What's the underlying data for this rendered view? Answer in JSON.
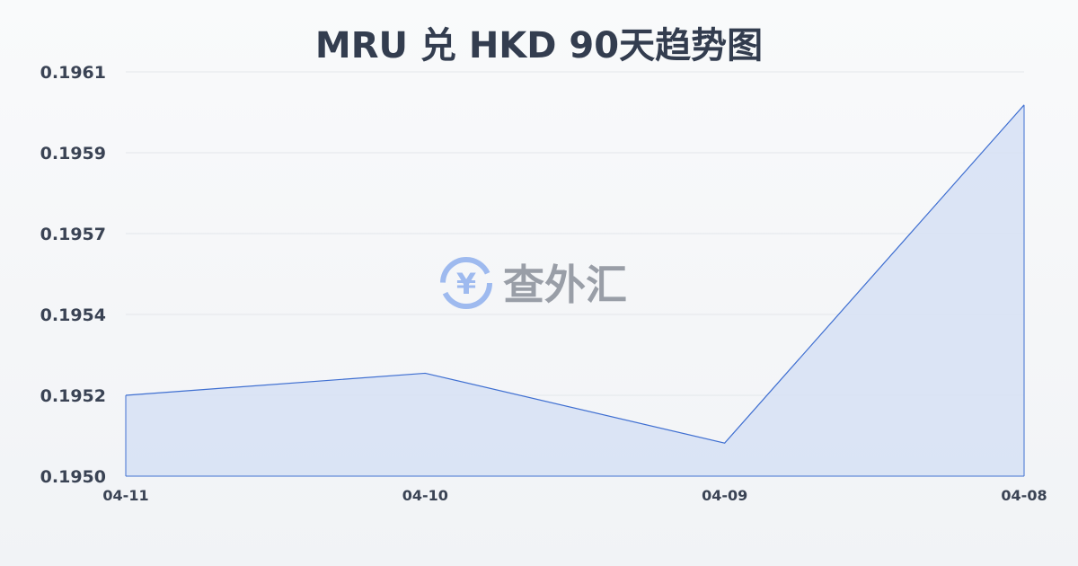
{
  "chart_data": {
    "type": "area",
    "title": "MRU 兑 HKD 90天趋势图",
    "xlabel": "",
    "ylabel": "",
    "categories": [
      "04-11",
      "04-10",
      "04-09",
      "04-08"
    ],
    "values": [
      0.19522,
      0.19528,
      0.19509,
      0.19601
    ],
    "yticks": [
      "0.1961",
      "0.1959",
      "0.1957",
      "0.1954",
      "0.1952",
      "0.1950"
    ],
    "ylim": [
      0.195,
      0.1961
    ],
    "grid": true,
    "legend": "none",
    "colors": {
      "line": "#3f6fd1",
      "fill": "#d6e0f5",
      "grid": "#e3e6ea"
    }
  },
  "watermark": {
    "text": "查外汇",
    "icon": "yen-exchange-icon",
    "color": "#8fb0ee"
  }
}
